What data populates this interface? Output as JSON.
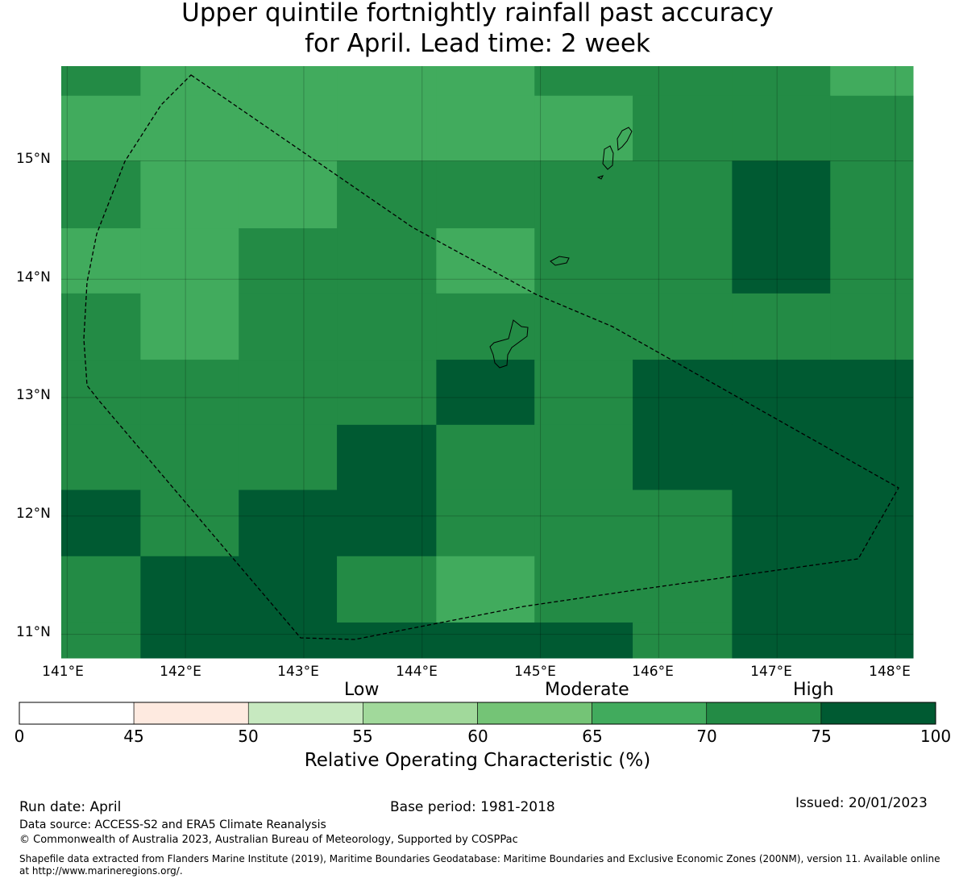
{
  "title": {
    "line1": "Upper quintile fortnightly rainfall past accuracy",
    "line2": "for April. Lead time: 2 week"
  },
  "map": {
    "lat_labels": [
      "15°N",
      "14°N",
      "13°N",
      "12°N",
      "11°N"
    ],
    "lon_labels": [
      "141°E",
      "142°E",
      "143°E",
      "144°E",
      "145°E",
      "146°E",
      "147°E",
      "148°E"
    ],
    "lon_range": [
      140.95,
      148.15
    ],
    "lat_range": [
      10.8,
      15.8
    ],
    "cell_columns_lon": [
      140.95,
      141.62,
      142.45,
      143.28,
      144.12,
      144.95,
      145.78,
      146.62,
      147.45,
      148.15
    ],
    "cell_rows_lat": [
      15.8,
      15.55,
      15.0,
      14.43,
      13.88,
      13.32,
      12.77,
      12.22,
      11.66,
      11.1,
      10.8
    ],
    "roc_category_grid": [
      [
        7,
        6,
        6,
        6,
        6,
        7,
        7,
        7,
        6
      ],
      [
        6,
        6,
        6,
        6,
        6,
        6,
        7,
        7,
        7
      ],
      [
        7,
        6,
        6,
        7,
        7,
        7,
        7,
        8,
        7
      ],
      [
        6,
        6,
        7,
        7,
        6,
        7,
        7,
        8,
        7
      ],
      [
        7,
        6,
        7,
        7,
        7,
        7,
        7,
        7,
        7
      ],
      [
        7,
        7,
        7,
        7,
        8,
        7,
        8,
        8,
        8
      ],
      [
        7,
        7,
        7,
        8,
        7,
        7,
        8,
        8,
        8
      ],
      [
        8,
        7,
        8,
        8,
        7,
        7,
        7,
        8,
        8
      ],
      [
        7,
        8,
        8,
        7,
        6,
        7,
        7,
        8,
        8
      ],
      [
        7,
        8,
        8,
        8,
        8,
        8,
        7,
        8,
        8
      ]
    ]
  },
  "colorbar": {
    "category_labels": [
      "Low",
      "Moderate",
      "High"
    ],
    "ticks": [
      "0",
      "45",
      "50",
      "55",
      "60",
      "65",
      "70",
      "75",
      "100"
    ],
    "colors": [
      "#ffffff",
      "#feeae0",
      "#c7e9c0",
      "#a1d99b",
      "#74c476",
      "#41ab5d",
      "#238b45",
      "#005a32"
    ],
    "label": "Relative Operating Characteristic (%)"
  },
  "footer": {
    "run_date": "Run date: April",
    "base_period": "Base period: 1981-2018",
    "issued": "Issued: 20/01/2023",
    "data_source": "Data source: ACCESS-S2 and ERA5 Climate Reanalysis",
    "copyright": "© Commonwealth of Australia 2023, Australian Bureau of Meteorology, Supported by COSPPac",
    "shapefile_line1": "Shapefile data extracted from Flanders Marine Institute (2019), Maritime Boundaries Geodatabase: Maritime Boundaries and Exclusive Economic Zones (200NM), version 11. Available online",
    "shapefile_line2": "at http://www.marineregions.org/."
  }
}
